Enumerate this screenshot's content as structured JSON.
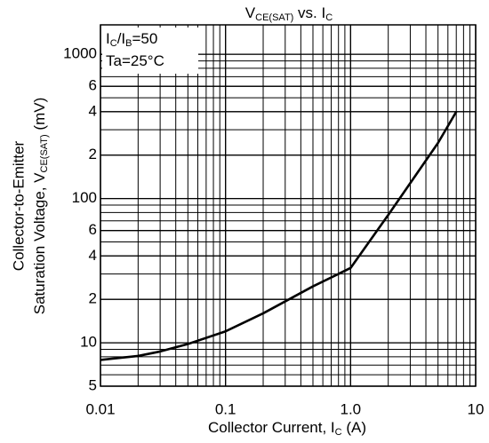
{
  "chart_data": {
    "type": "line",
    "title": [
      "V",
      "CE(SAT)",
      " vs. I",
      "C"
    ],
    "x_label": [
      "Collector Current, I",
      "C",
      " (A)"
    ],
    "y_label": [
      "Collector-to-Emitter",
      "Saturation Voltage, V",
      "CE(SAT)",
      " (mV)"
    ],
    "annotations": [
      [
        "I",
        "C",
        "/I",
        "B",
        "=50"
      ],
      [
        "Ta=25°C"
      ]
    ],
    "log_x": true,
    "log_y": true,
    "grid": true,
    "xlim": [
      0.01,
      10
    ],
    "ylim": [
      5,
      1600
    ],
    "xticks": [
      0.01,
      0.1,
      {
        "value": 1,
        "label": "1.0"
      },
      10
    ],
    "yticks": [
      5,
      10,
      {
        "value": 20,
        "label": "2"
      },
      {
        "value": 40,
        "label": "4"
      },
      {
        "value": 60,
        "label": "6"
      },
      100,
      {
        "value": 200,
        "label": "2"
      },
      {
        "value": 400,
        "label": "4"
      },
      {
        "value": 600,
        "label": "6"
      },
      1000
    ],
    "x": [
      0.01,
      0.02,
      0.03,
      0.05,
      0.1,
      0.2,
      0.5,
      1,
      2,
      3,
      5,
      7
    ],
    "series": [
      {
        "color": "#000000",
        "values": [
          7.6,
          8.1,
          8.7,
          9.8,
          12,
          16,
          24.6,
          33,
          77,
          128,
          243,
          400
        ]
      }
    ]
  }
}
